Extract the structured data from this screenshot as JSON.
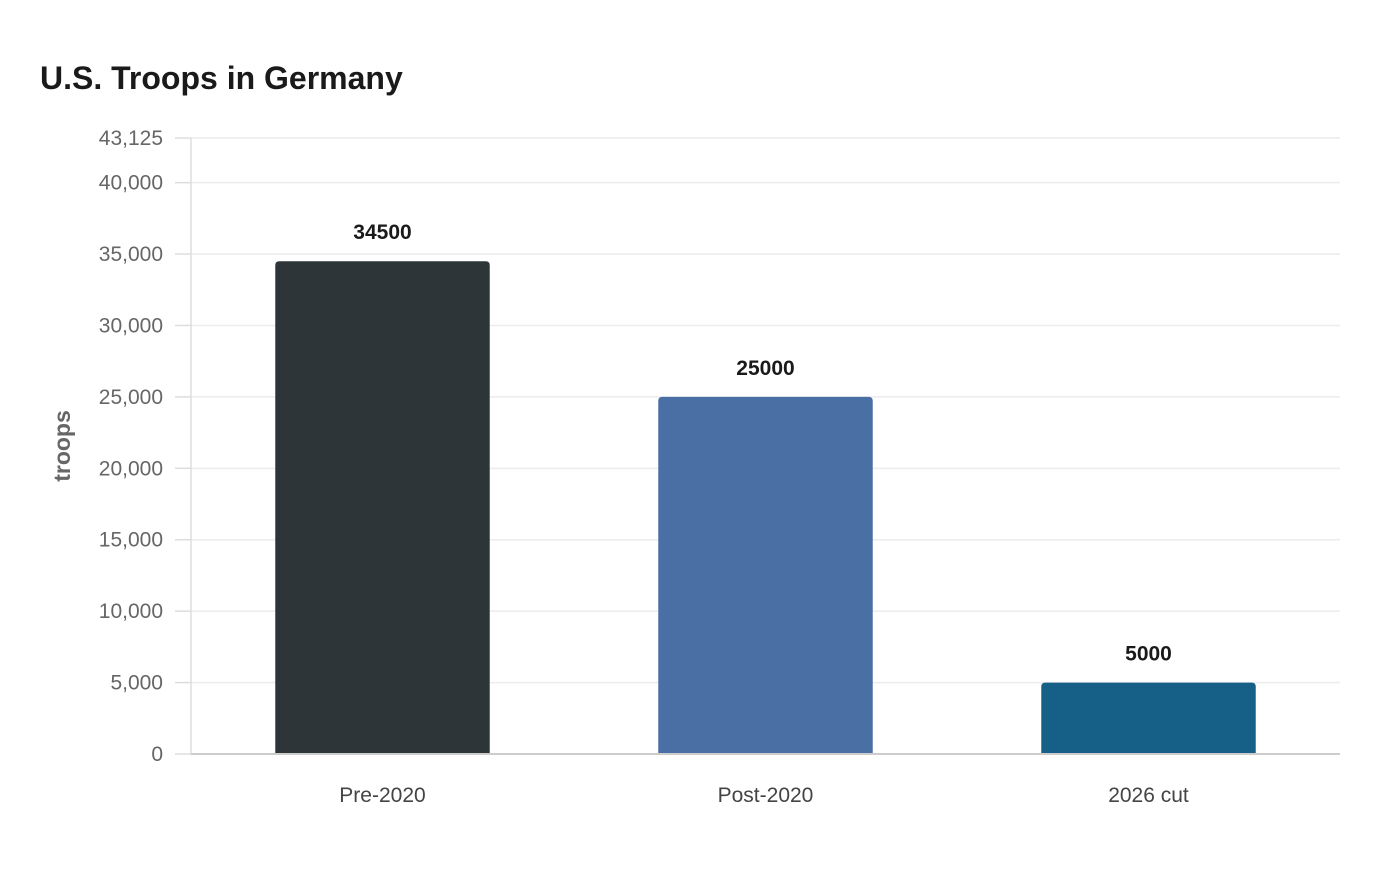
{
  "chart_data": {
    "type": "bar",
    "title": "U.S. Troops in Germany",
    "xlabel": "",
    "ylabel": "troops",
    "categories": [
      "Pre-2020",
      "Post-2020",
      "2026 cut"
    ],
    "values": [
      34500,
      25000,
      5000
    ],
    "data_labels": [
      "34500",
      "25000",
      "5000"
    ],
    "colors": [
      "#2e3538",
      "#4a6fa5",
      "#166088"
    ],
    "ylim": [
      0,
      43125
    ],
    "yticks": [
      0,
      5000,
      10000,
      15000,
      20000,
      25000,
      30000,
      35000,
      40000,
      43125
    ],
    "ytick_labels": [
      "0",
      "5,000",
      "10,000",
      "15,000",
      "20,000",
      "25,000",
      "30,000",
      "35,000",
      "40,000",
      "43,125"
    ],
    "grid": true,
    "legend": "none"
  }
}
